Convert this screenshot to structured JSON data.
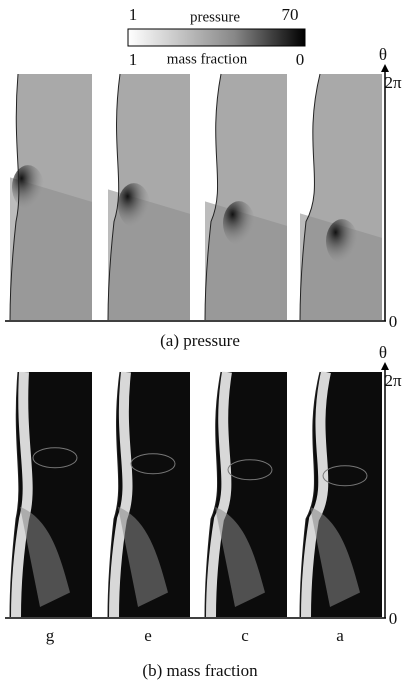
{
  "colorbars": [
    {
      "min": "1",
      "label": "pressure",
      "max": "70"
    },
    {
      "min": "1",
      "label": "mass fraction",
      "max": "0"
    }
  ],
  "axes": [
    {
      "label": "θ",
      "top": "2π",
      "bottom": "0"
    },
    {
      "label": "θ",
      "top": "2π",
      "bottom": "0"
    }
  ],
  "panels": [
    {
      "caption": "(a) pressure"
    },
    {
      "caption": "(b) mass fraction",
      "labels": [
        "g",
        "e",
        "c",
        "a"
      ]
    }
  ]
}
